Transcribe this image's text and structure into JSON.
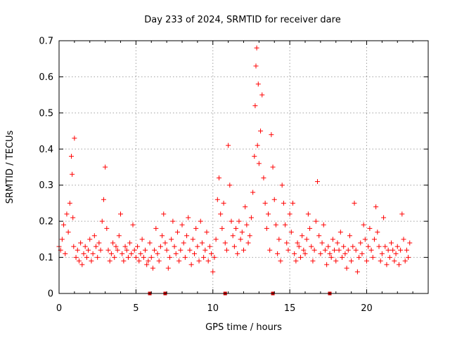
{
  "chart_data": {
    "type": "scatter",
    "title": "Day 233 of 2024, SRMTID for receiver dare",
    "xlabel": "GPS time / hours",
    "ylabel": "SRMTID / TECUs",
    "xlim": [
      0,
      24
    ],
    "ylim": [
      0,
      0.7
    ],
    "xticks": [
      0,
      5,
      10,
      15,
      20
    ],
    "xtick_labels": [
      "0",
      "5",
      "10",
      "15",
      "20"
    ],
    "yticks": [
      0,
      0.1,
      0.2,
      0.3,
      0.4,
      0.5,
      0.6,
      0.7
    ],
    "ytick_labels": [
      "0",
      "0.1",
      "0.2",
      "0.3",
      "0.4",
      "0.5",
      "0.6",
      "0.7"
    ],
    "grid": true,
    "marker": "plus",
    "series_color": "#ff0000",
    "gap_marker_color": "#cc0000",
    "gap_markers_x": [
      5.9,
      6.9,
      10.8,
      13.9,
      17.6
    ],
    "x": [
      0.0,
      0.1,
      0.2,
      0.3,
      0.4,
      0.5,
      0.6,
      0.7,
      0.8,
      0.85,
      0.9,
      0.95,
      1.0,
      1.1,
      1.2,
      1.3,
      1.4,
      1.5,
      1.6,
      1.7,
      1.8,
      1.9,
      2.0,
      2.1,
      2.2,
      2.3,
      2.4,
      2.5,
      2.6,
      2.7,
      2.8,
      2.9,
      3.0,
      3.1,
      3.2,
      3.3,
      3.4,
      3.5,
      3.6,
      3.7,
      3.8,
      3.9,
      4.0,
      4.1,
      4.2,
      4.3,
      4.4,
      4.5,
      4.6,
      4.7,
      4.8,
      4.9,
      5.0,
      5.1,
      5.2,
      5.3,
      5.4,
      5.5,
      5.6,
      5.7,
      5.8,
      5.9,
      6.0,
      6.1,
      6.2,
      6.3,
      6.4,
      6.5,
      6.6,
      6.7,
      6.8,
      6.9,
      7.0,
      7.1,
      7.2,
      7.3,
      7.4,
      7.5,
      7.6,
      7.7,
      7.8,
      7.9,
      8.0,
      8.1,
      8.2,
      8.3,
      8.4,
      8.5,
      8.6,
      8.7,
      8.8,
      8.9,
      9.0,
      9.1,
      9.2,
      9.3,
      9.4,
      9.5,
      9.6,
      9.7,
      9.8,
      9.9,
      10.0,
      10.1,
      10.2,
      10.3,
      10.4,
      10.5,
      10.6,
      10.7,
      10.8,
      10.9,
      11.0,
      11.1,
      11.2,
      11.3,
      11.4,
      11.5,
      11.6,
      11.7,
      11.8,
      11.9,
      12.0,
      12.1,
      12.2,
      12.3,
      12.4,
      12.5,
      12.6,
      12.7,
      12.75,
      12.8,
      12.85,
      12.9,
      12.95,
      13.0,
      13.1,
      13.2,
      13.3,
      13.4,
      13.5,
      13.6,
      13.7,
      13.8,
      13.9,
      14.0,
      14.1,
      14.2,
      14.3,
      14.4,
      14.5,
      14.6,
      14.7,
      14.8,
      14.9,
      15.0,
      15.1,
      15.2,
      15.3,
      15.4,
      15.5,
      15.6,
      15.7,
      15.8,
      15.9,
      16.0,
      16.1,
      16.2,
      16.3,
      16.4,
      16.5,
      16.6,
      16.7,
      16.8,
      16.9,
      17.0,
      17.1,
      17.2,
      17.3,
      17.4,
      17.5,
      17.6,
      17.7,
      17.8,
      17.9,
      18.0,
      18.1,
      18.2,
      18.3,
      18.4,
      18.5,
      18.6,
      18.7,
      18.8,
      18.9,
      19.0,
      19.1,
      19.2,
      19.3,
      19.4,
      19.5,
      19.6,
      19.7,
      19.8,
      19.9,
      20.0,
      20.1,
      20.2,
      20.3,
      20.4,
      20.5,
      20.6,
      20.7,
      20.8,
      20.9,
      21.0,
      21.1,
      21.2,
      21.3,
      21.4,
      21.5,
      21.6,
      21.7,
      21.8,
      21.9,
      22.0,
      22.1,
      22.2,
      22.3,
      22.4,
      22.5,
      22.6,
      22.7,
      22.8
    ],
    "y": [
      0.13,
      0.12,
      0.15,
      0.19,
      0.11,
      0.22,
      0.17,
      0.25,
      0.38,
      0.33,
      0.21,
      0.13,
      0.43,
      0.1,
      0.12,
      0.09,
      0.14,
      0.08,
      0.11,
      0.13,
      0.1,
      0.12,
      0.15,
      0.09,
      0.11,
      0.16,
      0.13,
      0.1,
      0.14,
      0.12,
      0.2,
      0.26,
      0.35,
      0.18,
      0.12,
      0.09,
      0.11,
      0.14,
      0.1,
      0.13,
      0.12,
      0.16,
      0.22,
      0.11,
      0.09,
      0.13,
      0.12,
      0.1,
      0.14,
      0.11,
      0.19,
      0.12,
      0.1,
      0.13,
      0.09,
      0.11,
      0.15,
      0.1,
      0.12,
      0.08,
      0.09,
      0.14,
      0.1,
      0.07,
      0.12,
      0.18,
      0.11,
      0.09,
      0.13,
      0.16,
      0.22,
      0.14,
      0.12,
      0.07,
      0.1,
      0.15,
      0.2,
      0.13,
      0.11,
      0.17,
      0.09,
      0.12,
      0.19,
      0.14,
      0.1,
      0.16,
      0.21,
      0.12,
      0.08,
      0.15,
      0.11,
      0.18,
      0.13,
      0.09,
      0.2,
      0.14,
      0.1,
      0.12,
      0.17,
      0.09,
      0.13,
      0.11,
      0.06,
      0.1,
      0.15,
      0.26,
      0.32,
      0.22,
      0.18,
      0.25,
      0.14,
      0.12,
      0.41,
      0.3,
      0.2,
      0.16,
      0.13,
      0.18,
      0.11,
      0.2,
      0.15,
      0.17,
      0.12,
      0.24,
      0.19,
      0.14,
      0.16,
      0.21,
      0.28,
      0.38,
      0.52,
      0.63,
      0.68,
      0.41,
      0.58,
      0.36,
      0.45,
      0.55,
      0.32,
      0.25,
      0.18,
      0.22,
      0.12,
      0.44,
      0.35,
      0.26,
      0.19,
      0.11,
      0.15,
      0.09,
      0.3,
      0.25,
      0.19,
      0.14,
      0.12,
      0.22,
      0.17,
      0.25,
      0.11,
      0.09,
      0.14,
      0.13,
      0.1,
      0.16,
      0.12,
      0.11,
      0.15,
      0.22,
      0.18,
      0.13,
      0.09,
      0.12,
      0.2,
      0.31,
      0.16,
      0.11,
      0.14,
      0.19,
      0.12,
      0.08,
      0.13,
      0.11,
      0.1,
      0.15,
      0.12,
      0.09,
      0.14,
      0.12,
      0.17,
      0.1,
      0.13,
      0.11,
      0.07,
      0.12,
      0.16,
      0.09,
      0.13,
      0.25,
      0.12,
      0.06,
      0.1,
      0.14,
      0.11,
      0.19,
      0.15,
      0.09,
      0.13,
      0.18,
      0.12,
      0.1,
      0.15,
      0.24,
      0.17,
      0.13,
      0.09,
      0.11,
      0.21,
      0.13,
      0.08,
      0.12,
      0.1,
      0.14,
      0.12,
      0.09,
      0.11,
      0.13,
      0.08,
      0.12,
      0.22,
      0.15,
      0.09,
      0.12,
      0.1,
      0.14
    ]
  }
}
